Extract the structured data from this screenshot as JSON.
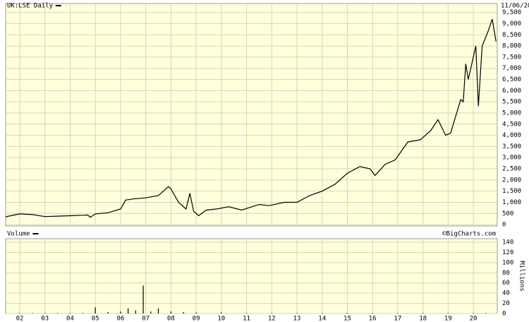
{
  "chart_data": [
    {
      "type": "line",
      "date": "11/06/20",
      "x": [
        2001.44,
        2002.0,
        2002.5,
        2003.0,
        2003.5,
        2004.0,
        2004.5,
        2004.7,
        2004.8,
        2005.0,
        2005.5,
        2006.0,
        2006.2,
        2006.5,
        2007.0,
        2007.5,
        2007.9,
        2008.0,
        2008.3,
        2008.6,
        2008.75,
        2008.9,
        2009.1,
        2009.4,
        2009.8,
        2010.3,
        2010.8,
        2011.5,
        2011.9,
        2012.5,
        2013.0,
        2013.5,
        2014.0,
        2014.5,
        2015.0,
        2015.5,
        2015.9,
        2016.1,
        2016.5,
        2016.9,
        2017.4,
        2017.9,
        2018.3,
        2018.6,
        2018.9,
        2019.1,
        2019.5,
        2019.6,
        2019.7,
        2019.8,
        2020.1,
        2020.2,
        2020.35,
        2020.6,
        2020.75,
        2020.9
      ],
      "series": [
        {
          "name": "UK:LSE Daily",
          "color": "#000000",
          "values": [
            350,
            480,
            450,
            360,
            380,
            400,
            420,
            430,
            330,
            480,
            530,
            700,
            1100,
            1150,
            1200,
            1300,
            1700,
            1600,
            1000,
            700,
            1400,
            600,
            400,
            650,
            700,
            800,
            650,
            900,
            850,
            1000,
            1000,
            1300,
            1500,
            1800,
            2300,
            2600,
            2500,
            2200,
            2700,
            2900,
            3700,
            3800,
            4200,
            4700,
            4000,
            4100,
            5600,
            5500,
            7200,
            6500,
            8000,
            5300,
            8000,
            8700,
            9200,
            8200
          ]
        }
      ],
      "xlim": [
        2001.44,
        2020.95
      ],
      "ylim": [
        -60,
        9900
      ],
      "yticks": [
        0,
        500,
        {
          "value": 1000,
          "label": "1,000"
        },
        {
          "value": 1500,
          "label": "1,500"
        },
        {
          "value": 2000,
          "label": "2,000"
        },
        {
          "value": 2500,
          "label": "2,500"
        },
        {
          "value": 3000,
          "label": "3,000"
        },
        {
          "value": 3500,
          "label": "3,500"
        },
        {
          "value": 4000,
          "label": "4,000"
        },
        {
          "value": 4500,
          "label": "4,500"
        },
        {
          "value": 5000,
          "label": "5,000"
        },
        {
          "value": 5500,
          "label": "5,500"
        },
        {
          "value": 6000,
          "label": "6,000"
        },
        {
          "value": 6500,
          "label": "6,500"
        },
        {
          "value": 7000,
          "label": "7,000"
        },
        {
          "value": 7500,
          "label": "7,500"
        },
        {
          "value": 8000,
          "label": "8,000"
        },
        {
          "value": 8500,
          "label": "8,500"
        },
        {
          "value": 9000,
          "label": "9,000"
        },
        {
          "value": 9500,
          "label": "9,500"
        }
      ],
      "grid": true
    },
    {
      "type": "bar",
      "source": "©BigCharts.com",
      "y_label": "Millions",
      "x": [
        2002.0,
        2002.5,
        2003.0,
        2003.5,
        2004.0,
        2004.5,
        2005.0,
        2005.5,
        2006.0,
        2006.3,
        2006.6,
        2006.9,
        2007.2,
        2007.5,
        2008.0,
        2008.5,
        2009.0,
        2010.0,
        2011.0,
        2012.0,
        2013.0,
        2014.0,
        2015.0,
        2016.0,
        2017.0,
        2018.0,
        2019.0,
        2020.0,
        2020.5
      ],
      "series": [
        {
          "name": "Volume",
          "color": "#000000",
          "values": [
            1,
            1,
            1,
            1,
            1,
            1,
            12,
            3,
            4,
            10,
            6,
            55,
            4,
            10,
            4,
            3,
            2,
            2,
            1,
            1,
            1,
            1,
            1,
            1,
            1,
            1,
            1,
            1,
            1
          ]
        }
      ],
      "xlim": [
        2001.44,
        2020.95
      ],
      "ylim": [
        0,
        147
      ],
      "yticks": [
        0,
        20,
        40,
        60,
        80,
        100,
        120,
        140
      ],
      "xticks": [
        {
          "value": 2002,
          "label": "02"
        },
        {
          "value": 2003,
          "label": "03"
        },
        {
          "value": 2004,
          "label": "04"
        },
        {
          "value": 2005,
          "label": "05"
        },
        {
          "value": 2006,
          "label": "06"
        },
        {
          "value": 2007,
          "label": "07"
        },
        {
          "value": 2008,
          "label": "08"
        },
        {
          "value": 2009,
          "label": "09"
        },
        {
          "value": 2010,
          "label": "10"
        },
        {
          "value": 2011,
          "label": "11"
        },
        {
          "value": 2012,
          "label": "12"
        },
        {
          "value": 2013,
          "label": "13"
        },
        {
          "value": 2014,
          "label": "14"
        },
        {
          "value": 2015,
          "label": "15"
        },
        {
          "value": 2016,
          "label": "16"
        },
        {
          "value": 2017,
          "label": "17"
        },
        {
          "value": 2018,
          "label": "18"
        },
        {
          "value": 2019,
          "label": "19"
        },
        {
          "value": 2020,
          "label": "20"
        }
      ],
      "grid": true
    }
  ]
}
